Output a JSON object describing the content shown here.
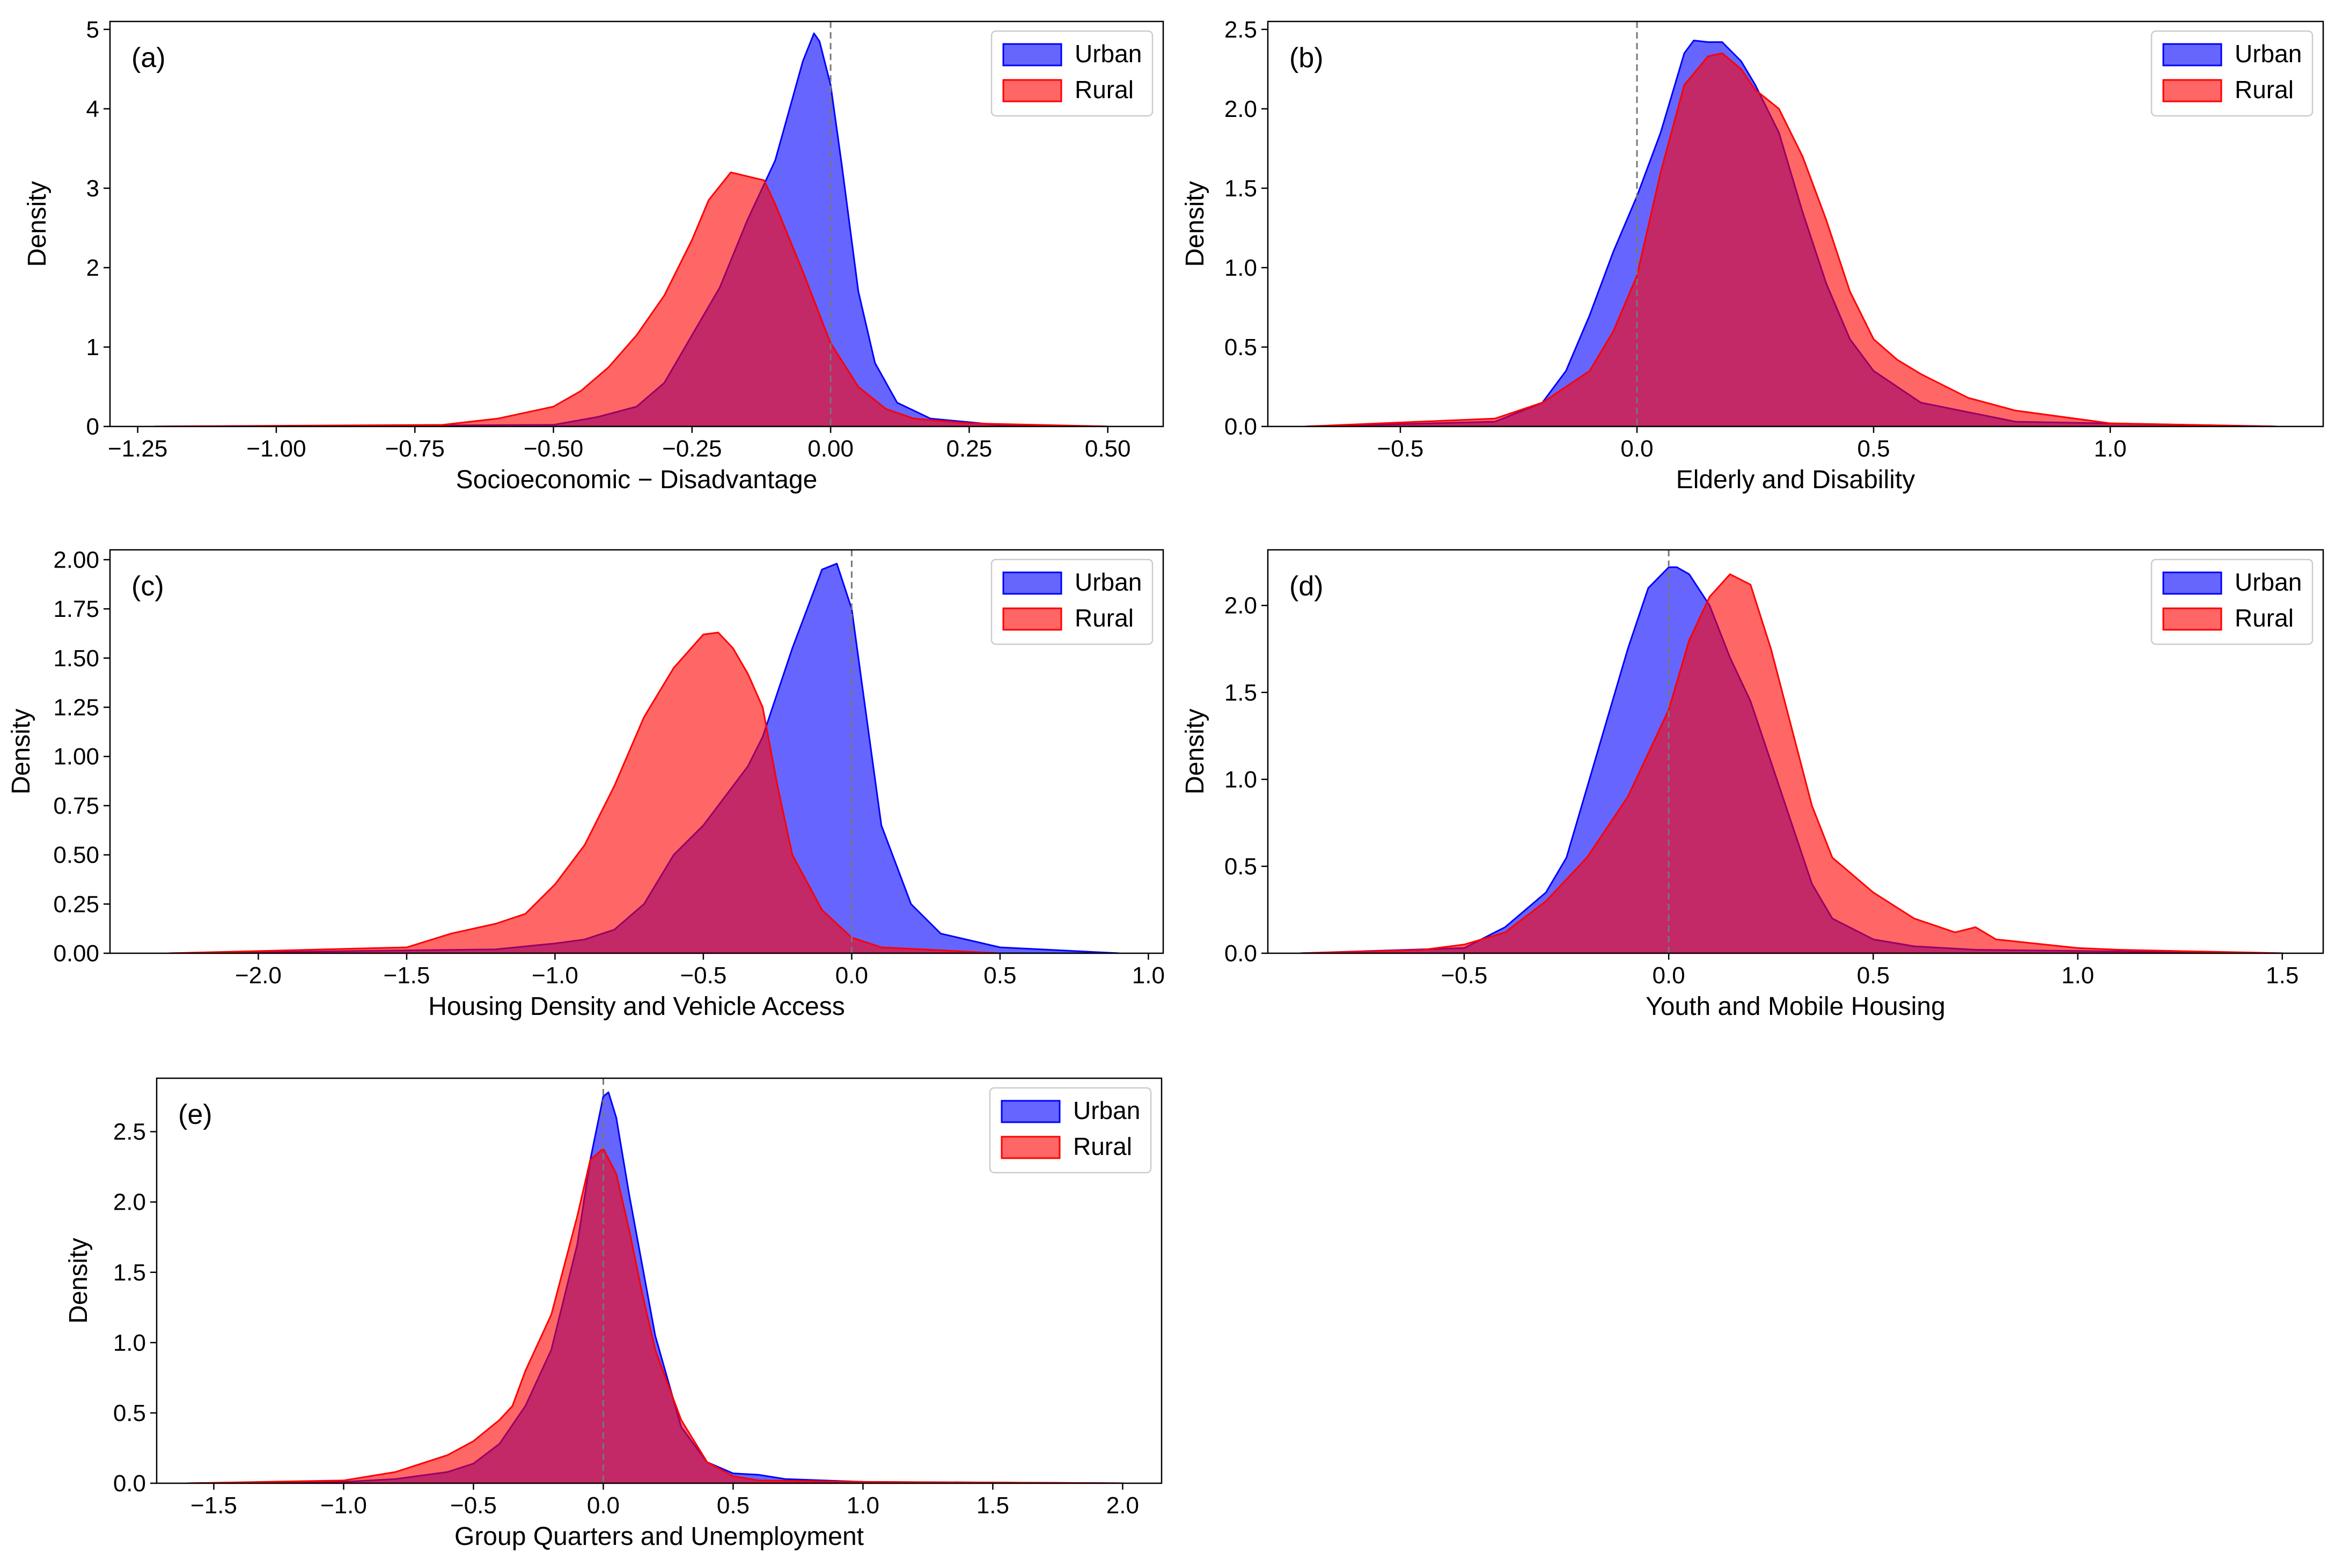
{
  "figure": {
    "legend_labels": [
      "Urban",
      "Rural"
    ],
    "colors": {
      "urban": "#0000ff",
      "rural": "#ff0000"
    },
    "ylabel": "Density"
  },
  "chart_data": [
    {
      "type": "area",
      "panel_label": "(a)",
      "title": "",
      "xlabel": "Socioeconomic − Disadvantage",
      "ylabel": "Density",
      "xlim": [
        -1.3,
        0.6
      ],
      "ylim": [
        0,
        5.1
      ],
      "xticks": [
        -1.25,
        -1.0,
        -0.75,
        -0.5,
        -0.25,
        0.0,
        0.25,
        0.5
      ],
      "xtick_labels": [
        "−1.25",
        "−1.00",
        "−0.75",
        "−0.50",
        "−0.25",
        "0.00",
        "0.25",
        "0.50"
      ],
      "yticks": [
        0,
        1,
        2,
        3,
        4,
        5
      ],
      "ytick_labels": [
        "0",
        "1",
        "2",
        "3",
        "4",
        "5"
      ],
      "reference_line_x": 0.0,
      "grid": false,
      "legend": "top-right",
      "series": [
        {
          "name": "Urban",
          "x": [
            -1.22,
            -0.5,
            -0.42,
            -0.35,
            -0.3,
            -0.25,
            -0.2,
            -0.15,
            -0.1,
            -0.08,
            -0.05,
            -0.03,
            -0.02,
            0.0,
            0.02,
            0.05,
            0.08,
            0.12,
            0.18,
            0.3,
            0.5
          ],
          "y": [
            0,
            0.02,
            0.12,
            0.25,
            0.55,
            1.15,
            1.75,
            2.6,
            3.35,
            3.85,
            4.6,
            4.95,
            4.85,
            4.3,
            3.3,
            1.7,
            0.8,
            0.3,
            0.1,
            0.02,
            0
          ]
        },
        {
          "name": "Rural",
          "x": [
            -1.22,
            -0.7,
            -0.6,
            -0.5,
            -0.45,
            -0.4,
            -0.35,
            -0.3,
            -0.25,
            -0.22,
            -0.18,
            -0.15,
            -0.12,
            -0.1,
            -0.05,
            0.0,
            0.05,
            0.1,
            0.15,
            0.25,
            0.5
          ],
          "y": [
            0,
            0.02,
            0.1,
            0.25,
            0.45,
            0.75,
            1.15,
            1.65,
            2.35,
            2.85,
            3.2,
            3.15,
            3.1,
            2.8,
            1.95,
            1.05,
            0.5,
            0.22,
            0.1,
            0.04,
            0
          ]
        }
      ]
    },
    {
      "type": "area",
      "panel_label": "(b)",
      "title": "",
      "xlabel": "Elderly and Disability",
      "ylabel": "Density",
      "xlim": [
        -0.78,
        1.45
      ],
      "ylim": [
        0,
        2.55
      ],
      "xticks": [
        -0.5,
        0.0,
        0.5,
        1.0
      ],
      "xtick_labels": [
        "−0.5",
        "0.0",
        "0.5",
        "1.0"
      ],
      "yticks": [
        0,
        0.5,
        1.0,
        1.5,
        2.0,
        2.5
      ],
      "ytick_labels": [
        "0.0",
        "0.5",
        "1.0",
        "1.5",
        "2.0",
        "2.5"
      ],
      "reference_line_x": 0.0,
      "grid": false,
      "legend": "top-right",
      "series": [
        {
          "name": "Urban",
          "x": [
            -0.7,
            -0.3,
            -0.2,
            -0.15,
            -0.1,
            -0.05,
            0.0,
            0.05,
            0.08,
            0.1,
            0.12,
            0.15,
            0.18,
            0.22,
            0.25,
            0.3,
            0.35,
            0.4,
            0.45,
            0.5,
            0.6,
            0.8,
            1.35
          ],
          "y": [
            0,
            0.03,
            0.15,
            0.35,
            0.7,
            1.1,
            1.45,
            1.85,
            2.15,
            2.35,
            2.43,
            2.42,
            2.42,
            2.3,
            2.15,
            1.85,
            1.35,
            0.9,
            0.55,
            0.35,
            0.15,
            0.03,
            0
          ]
        },
        {
          "name": "Rural",
          "x": [
            -0.7,
            -0.3,
            -0.2,
            -0.1,
            -0.05,
            0.0,
            0.05,
            0.1,
            0.15,
            0.18,
            0.22,
            0.25,
            0.3,
            0.35,
            0.4,
            0.45,
            0.5,
            0.55,
            0.6,
            0.7,
            0.8,
            1.0,
            1.35
          ],
          "y": [
            0,
            0.05,
            0.15,
            0.35,
            0.6,
            0.95,
            1.6,
            2.15,
            2.33,
            2.35,
            2.25,
            2.12,
            2.0,
            1.7,
            1.3,
            0.85,
            0.55,
            0.42,
            0.33,
            0.18,
            0.1,
            0.02,
            0
          ]
        }
      ]
    },
    {
      "type": "area",
      "panel_label": "(c)",
      "title": "",
      "xlabel": "Housing Density and Vehicle Access",
      "ylabel": "Density",
      "xlim": [
        -2.5,
        1.05
      ],
      "ylim": [
        0,
        2.05
      ],
      "xticks": [
        -2.0,
        -1.5,
        -1.0,
        -0.5,
        0.0,
        0.5,
        1.0
      ],
      "xtick_labels": [
        "−2.0",
        "−1.5",
        "−1.0",
        "−0.5",
        "0.0",
        "0.5",
        "1.0"
      ],
      "yticks": [
        0,
        0.25,
        0.5,
        0.75,
        1.0,
        1.25,
        1.5,
        1.75,
        2.0
      ],
      "ytick_labels": [
        "0.00",
        "0.25",
        "0.50",
        "0.75",
        "1.00",
        "1.25",
        "1.50",
        "1.75",
        "2.00"
      ],
      "reference_line_x": 0.0,
      "grid": false,
      "legend": "top-right",
      "series": [
        {
          "name": "Urban",
          "x": [
            -2.3,
            -1.2,
            -1.0,
            -0.9,
            -0.8,
            -0.7,
            -0.6,
            -0.5,
            -0.45,
            -0.35,
            -0.3,
            -0.2,
            -0.1,
            -0.05,
            0.0,
            0.05,
            0.1,
            0.2,
            0.3,
            0.5,
            0.9
          ],
          "y": [
            0,
            0.02,
            0.05,
            0.07,
            0.12,
            0.25,
            0.5,
            0.65,
            0.75,
            0.95,
            1.1,
            1.55,
            1.95,
            1.98,
            1.75,
            1.2,
            0.65,
            0.25,
            0.1,
            0.03,
            0
          ]
        },
        {
          "name": "Rural",
          "x": [
            -2.3,
            -1.5,
            -1.35,
            -1.2,
            -1.1,
            -1.0,
            -0.9,
            -0.8,
            -0.7,
            -0.6,
            -0.5,
            -0.45,
            -0.4,
            -0.35,
            -0.3,
            -0.25,
            -0.2,
            -0.1,
            0.0,
            0.1,
            0.5
          ],
          "y": [
            0,
            0.03,
            0.1,
            0.15,
            0.2,
            0.35,
            0.55,
            0.85,
            1.2,
            1.45,
            1.62,
            1.63,
            1.55,
            1.42,
            1.25,
            0.85,
            0.5,
            0.22,
            0.08,
            0.03,
            0
          ]
        }
      ]
    },
    {
      "type": "area",
      "panel_label": "(d)",
      "title": "",
      "xlabel": "Youth and Mobile Housing",
      "ylabel": "Density",
      "xlim": [
        -0.98,
        1.6
      ],
      "ylim": [
        0,
        2.32
      ],
      "xticks": [
        -0.5,
        0.0,
        0.5,
        1.0,
        1.5
      ],
      "xtick_labels": [
        "−0.5",
        "0.0",
        "0.5",
        "1.0",
        "1.5"
      ],
      "yticks": [
        0,
        0.5,
        1.0,
        1.5,
        2.0
      ],
      "ytick_labels": [
        "0.0",
        "0.5",
        "1.0",
        "1.5",
        "2.0"
      ],
      "reference_line_x": 0.0,
      "grid": false,
      "legend": "top-right",
      "series": [
        {
          "name": "Urban",
          "x": [
            -0.9,
            -0.5,
            -0.4,
            -0.3,
            -0.25,
            -0.2,
            -0.15,
            -0.1,
            -0.05,
            0.0,
            0.02,
            0.05,
            0.1,
            0.15,
            0.2,
            0.25,
            0.3,
            0.35,
            0.4,
            0.5,
            0.6,
            0.75,
            1.5
          ],
          "y": [
            0,
            0.03,
            0.15,
            0.35,
            0.55,
            0.95,
            1.35,
            1.75,
            2.1,
            2.22,
            2.22,
            2.18,
            2.0,
            1.7,
            1.45,
            1.1,
            0.75,
            0.4,
            0.2,
            0.08,
            0.04,
            0.02,
            0
          ]
        },
        {
          "name": "Rural",
          "x": [
            -0.9,
            -0.6,
            -0.5,
            -0.4,
            -0.3,
            -0.2,
            -0.1,
            0.0,
            0.05,
            0.1,
            0.15,
            0.2,
            0.25,
            0.3,
            0.35,
            0.4,
            0.5,
            0.6,
            0.7,
            0.75,
            0.8,
            1.0,
            1.1,
            1.5
          ],
          "y": [
            0,
            0.02,
            0.05,
            0.12,
            0.3,
            0.55,
            0.9,
            1.4,
            1.8,
            2.05,
            2.18,
            2.12,
            1.75,
            1.3,
            0.85,
            0.55,
            0.35,
            0.2,
            0.12,
            0.15,
            0.08,
            0.03,
            0.02,
            0
          ]
        }
      ]
    },
    {
      "type": "area",
      "panel_label": "(e)",
      "title": "",
      "xlabel": "Group Quarters and Unemployment",
      "ylabel": "Density",
      "xlim": [
        -1.72,
        2.15
      ],
      "ylim": [
        0,
        2.88
      ],
      "xticks": [
        -1.5,
        -1.0,
        -0.5,
        0.0,
        0.5,
        1.0,
        1.5,
        2.0
      ],
      "xtick_labels": [
        "−1.5",
        "−1.0",
        "−0.5",
        "0.0",
        "0.5",
        "1.0",
        "1.5",
        "2.0"
      ],
      "yticks": [
        0,
        0.5,
        1.0,
        1.5,
        2.0,
        2.5
      ],
      "ytick_labels": [
        "0.0",
        "0.5",
        "1.0",
        "1.5",
        "2.0",
        "2.5"
      ],
      "reference_line_x": 0.0,
      "grid": false,
      "legend": "top-right",
      "series": [
        {
          "name": "Urban",
          "x": [
            -1.6,
            -1.0,
            -0.8,
            -0.6,
            -0.5,
            -0.4,
            -0.3,
            -0.2,
            -0.1,
            -0.05,
            0.0,
            0.02,
            0.05,
            0.1,
            0.15,
            0.2,
            0.3,
            0.4,
            0.5,
            0.6,
            0.7,
            1.0,
            2.0
          ],
          "y": [
            0,
            0.01,
            0.03,
            0.08,
            0.14,
            0.28,
            0.55,
            0.95,
            1.7,
            2.3,
            2.75,
            2.78,
            2.6,
            2.05,
            1.55,
            1.05,
            0.4,
            0.15,
            0.07,
            0.06,
            0.03,
            0.01,
            0
          ]
        },
        {
          "name": "Rural",
          "x": [
            -1.6,
            -1.0,
            -0.8,
            -0.6,
            -0.5,
            -0.4,
            -0.35,
            -0.3,
            -0.2,
            -0.1,
            -0.05,
            0.0,
            0.05,
            0.1,
            0.15,
            0.2,
            0.3,
            0.4,
            0.5,
            0.6,
            1.0,
            2.0
          ],
          "y": [
            0,
            0.02,
            0.08,
            0.2,
            0.3,
            0.45,
            0.55,
            0.8,
            1.2,
            1.9,
            2.3,
            2.38,
            2.2,
            1.8,
            1.35,
            0.95,
            0.45,
            0.15,
            0.05,
            0.02,
            0.01,
            0
          ]
        }
      ]
    }
  ]
}
